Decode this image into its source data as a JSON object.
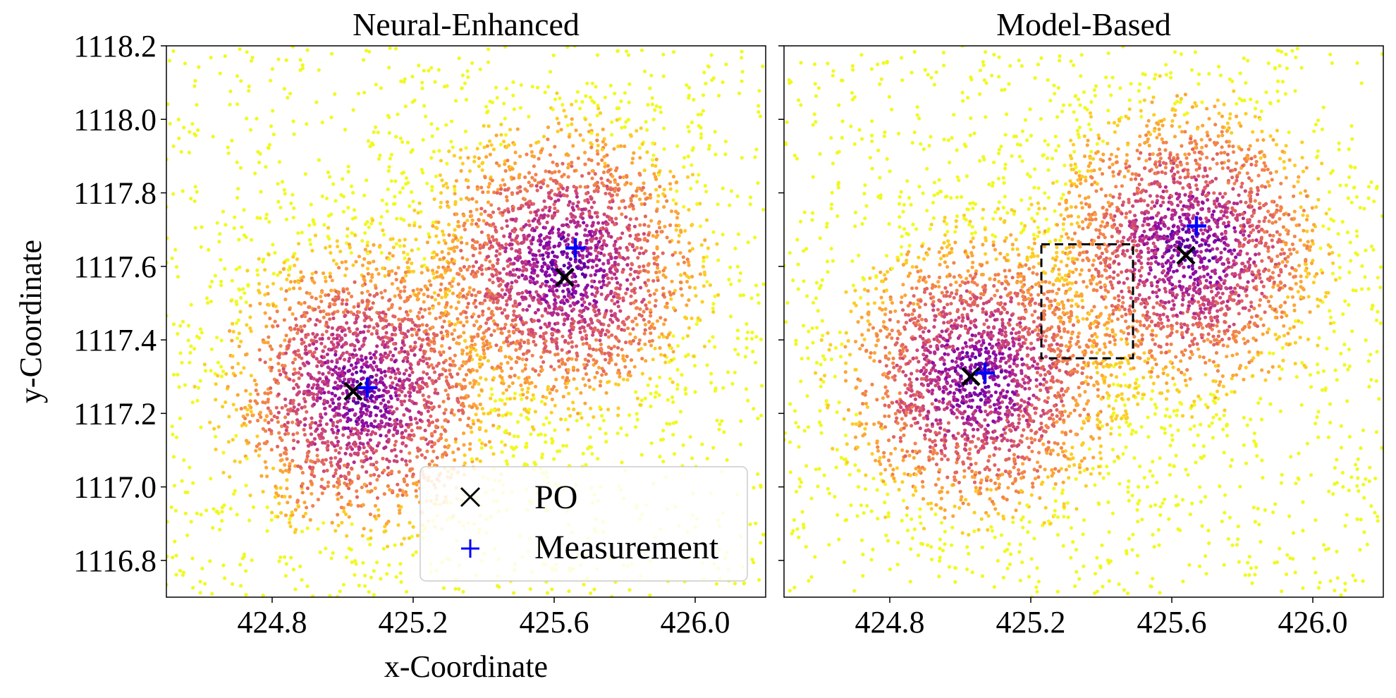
{
  "chart_data": [
    {
      "type": "scatter",
      "title": "Neural-Enhanced",
      "xlabel": "x-Coordinate",
      "ylabel": "y-Coordinate",
      "xlim": [
        424.5,
        426.2
      ],
      "ylim": [
        1116.7,
        1118.2
      ],
      "xticks": [
        "424.8",
        "425.2",
        "425.6",
        "426.0"
      ],
      "yticks": [
        "1116.8",
        "1117.0",
        "1117.2",
        "1117.4",
        "1117.6",
        "1117.8",
        "1118.0",
        "1118.2"
      ],
      "point_clusters": [
        {
          "name": "cluster-1",
          "center": [
            425.05,
            1117.26
          ],
          "spread": 0.2
        },
        {
          "name": "cluster-2",
          "center": [
            425.63,
            1117.6
          ],
          "spread": 0.2
        },
        {
          "name": "background",
          "range_x": [
            424.5,
            426.2
          ],
          "range_y": [
            1116.7,
            1118.2
          ]
        }
      ],
      "series": [
        {
          "name": "PO",
          "marker": "x",
          "color": "#000000",
          "points": [
            [
              425.03,
              1117.26
            ],
            [
              425.63,
              1117.57
            ]
          ]
        },
        {
          "name": "Measurement",
          "marker": "+",
          "color": "#0000ff",
          "points": [
            [
              425.07,
              1117.27
            ],
            [
              425.66,
              1117.65
            ]
          ]
        }
      ],
      "legend": {
        "position": "lower-right",
        "entries": [
          {
            "label": "PO",
            "marker": "x",
            "color": "#000000"
          },
          {
            "label": "Measurement",
            "marker": "+",
            "color": "#0000ff"
          }
        ]
      },
      "colormap": "plasma"
    },
    {
      "type": "scatter",
      "title": "Model-Based",
      "xlabel": "",
      "ylabel": "",
      "xlim": [
        424.5,
        426.2
      ],
      "ylim": [
        1116.7,
        1118.2
      ],
      "xticks": [
        "424.8",
        "425.2",
        "425.6",
        "426.0"
      ],
      "yticks": [],
      "point_clusters": [
        {
          "name": "cluster-1",
          "center": [
            425.05,
            1117.3
          ],
          "spread": 0.2
        },
        {
          "name": "cluster-2",
          "center": [
            425.65,
            1117.65
          ],
          "spread": 0.2
        },
        {
          "name": "background",
          "range_x": [
            424.5,
            426.2
          ],
          "range_y": [
            1116.7,
            1118.2
          ]
        }
      ],
      "series": [
        {
          "name": "PO",
          "marker": "x",
          "color": "#000000",
          "points": [
            [
              425.03,
              1117.3
            ],
            [
              425.64,
              1117.63
            ]
          ]
        },
        {
          "name": "Measurement",
          "marker": "+",
          "color": "#0000ff",
          "points": [
            [
              425.07,
              1117.31
            ],
            [
              425.67,
              1117.71
            ]
          ]
        }
      ],
      "annotations": [
        {
          "type": "dashed-rectangle",
          "x_range": [
            425.23,
            425.49
          ],
          "y_range": [
            1117.35,
            1117.66
          ],
          "color": "#000000"
        }
      ],
      "colormap": "plasma"
    }
  ]
}
